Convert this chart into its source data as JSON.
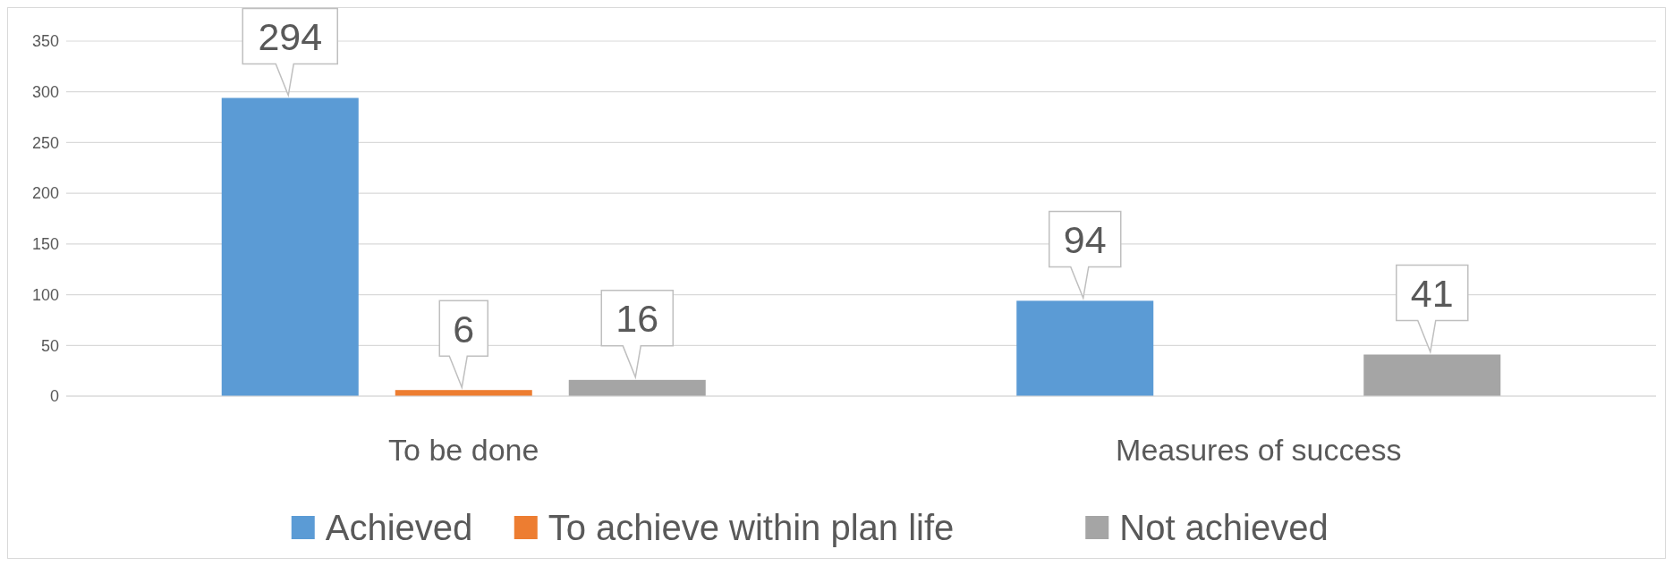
{
  "chart_data": {
    "type": "bar",
    "categories": [
      "To be done",
      "Measures of success"
    ],
    "series": [
      {
        "name": "Achieved",
        "color": "#5b9bd5",
        "values": [
          294,
          94
        ]
      },
      {
        "name": "To achieve within plan life",
        "color": "#ed7d31",
        "values": [
          6,
          null
        ]
      },
      {
        "name": "Not achieved",
        "color": "#a5a5a5",
        "values": [
          16,
          41
        ]
      }
    ],
    "ylim": [
      0,
      350
    ],
    "yticks": [
      0,
      50,
      100,
      150,
      200,
      250,
      300,
      350
    ],
    "grid": "y",
    "legend": "bottom",
    "data_labels": true
  }
}
